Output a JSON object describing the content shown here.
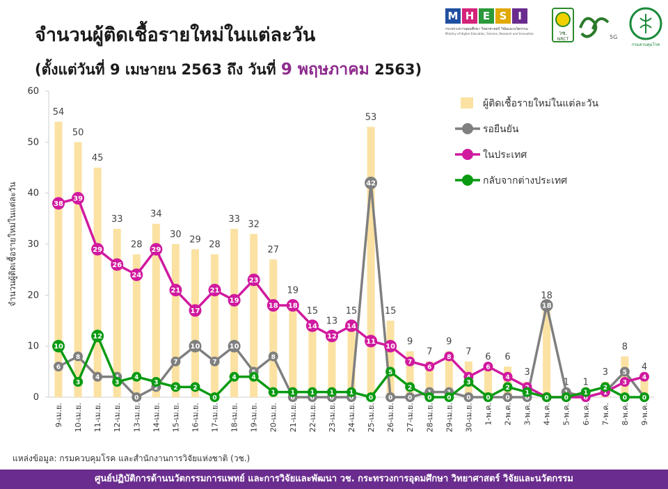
{
  "header": {
    "title": "จำนวนผู้ติดเชื้อรายใหม่ในแต่ละวัน",
    "subtitle_prefix": "(ตั้งแต่วันที่ 9 เมษายน 2563 ถึง วันที่",
    "subtitle_highlight": "9 พฤษภาคม",
    "subtitle_suffix": "2563)"
  },
  "logos": {
    "mhesi_letters": [
      "M",
      "H",
      "E",
      "S",
      "I"
    ],
    "mhesi_colors": [
      "#1f4fa0",
      "#d4237a",
      "#2a9a3a",
      "#e0a800",
      "#6a2c8e"
    ],
    "mhesi_line1": "กระทรวงการอุดมศึกษา วิทยาศาสตร์ วิจัยและนวัตกรรม",
    "mhesi_line2": "Ministry of Higher Education, Science, Research and Innovation",
    "nrct_label": "วช.",
    "nrct_sub": "NRCT",
    "fiveg_label": "5G",
    "ddc_label": "กรมควบคุมโรค"
  },
  "source_text": "แหล่งข้อมูล: กรมควบคุมโรค และสำนักงานการวิจัยแห่งชาติ (วช.)",
  "footer_text": "ศูนย์ปฏิบัติการด้านนวัตกรรมการแพทย์ และการวิจัยและพัฒนา   วช.   กระทรวงการอุดมศึกษา วิทยาศาสตร์ วิจัยและนวัตกรรม",
  "chart_data": {
    "type": "bar",
    "ylabel": "จำนวนผู้ติดเชื้อรายใหม่ในแต่ละวัน",
    "ylim": [
      0,
      60
    ],
    "yticks": [
      0,
      10,
      20,
      30,
      40,
      50,
      60
    ],
    "categories": [
      "9-เม.ย.",
      "10-เม.ย.",
      "11-เม.ย.",
      "12-เม.ย.",
      "13-เม.ย.",
      "14-เม.ย.",
      "15-เม.ย.",
      "16-เม.ย.",
      "17-เม.ย.",
      "18-เม.ย.",
      "19-เม.ย.",
      "20-เม.ย.",
      "21-เม.ย.",
      "22-เม.ย.",
      "23-เม.ย.",
      "24-เม.ย.",
      "25-เม.ย.",
      "26-เม.ย.",
      "27-เม.ย.",
      "28-เม.ย.",
      "29-เม.ย.",
      "30-เม.ย.",
      "1-พ.ค.",
      "2-พ.ค.",
      "3-พ.ค.",
      "4-พ.ค.",
      "5-พ.ค.",
      "6-พ.ค.",
      "7-พ.ค.",
      "8-พ.ค.",
      "9-พ.ค."
    ],
    "grid": false,
    "legend_position": "top-right",
    "series": [
      {
        "name": "ผู้ติดเชื้อรายใหม่ในแต่ละวัน",
        "kind": "bar",
        "color": "#fbe2a3",
        "values": [
          54,
          50,
          45,
          33,
          28,
          34,
          30,
          29,
          28,
          33,
          32,
          27,
          19,
          15,
          13,
          15,
          53,
          15,
          9,
          7,
          9,
          7,
          6,
          6,
          3,
          18,
          1,
          1,
          3,
          8,
          4
        ]
      },
      {
        "name": "รอยืนยัน",
        "kind": "line",
        "color": "#7f7f7f",
        "values": [
          6,
          8,
          4,
          4,
          0,
          2,
          7,
          10,
          7,
          10,
          5,
          8,
          0,
          0,
          0,
          0,
          42,
          0,
          0,
          1,
          1,
          0,
          0,
          0,
          0,
          18,
          1,
          0,
          1,
          5,
          0
        ]
      },
      {
        "name": "ในประเทศ",
        "kind": "line",
        "color": "#d0199e",
        "values": [
          38,
          39,
          29,
          26,
          24,
          29,
          21,
          17,
          21,
          19,
          23,
          18,
          18,
          14,
          12,
          14,
          11,
          10,
          7,
          6,
          8,
          4,
          6,
          4,
          2,
          0,
          0,
          0,
          1,
          3,
          4
        ]
      },
      {
        "name": "กลับจากต่างประเทศ",
        "kind": "line",
        "color": "#0a9a12",
        "values": [
          10,
          3,
          12,
          3,
          4,
          3,
          2,
          2,
          0,
          4,
          4,
          1,
          1,
          1,
          1,
          1,
          0,
          5,
          2,
          0,
          0,
          3,
          0,
          2,
          1,
          0,
          0,
          1,
          2,
          0,
          0
        ]
      }
    ]
  }
}
